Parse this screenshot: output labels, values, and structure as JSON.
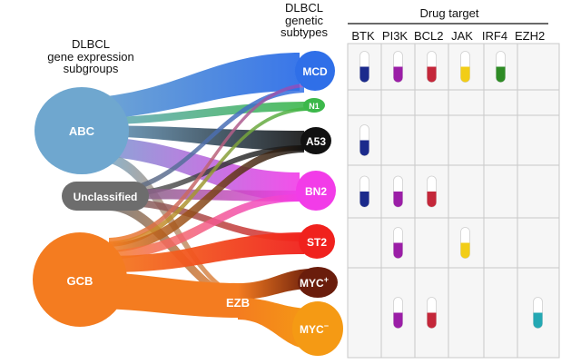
{
  "headers": {
    "left_line1": "DLBCL",
    "left_line2": "gene expression",
    "left_line3": "subgroups",
    "mid_line1": "DLBCL",
    "mid_line2": "genetic",
    "mid_line3": "subtypes",
    "drug_target": "Drug target"
  },
  "expression_subgroups": [
    {
      "id": "abc",
      "label": "ABC",
      "color": "#6fa7cf"
    },
    {
      "id": "unclassified",
      "label": "Unclassified",
      "color": "#6d6d6d"
    },
    {
      "id": "gcb",
      "label": "GCB",
      "color": "#f47c20"
    }
  ],
  "genetic_subtypes": [
    {
      "id": "mcd",
      "label": "MCD",
      "color": "#2f6fe8"
    },
    {
      "id": "n1",
      "label": "N1",
      "color": "#3cb84a"
    },
    {
      "id": "a53",
      "label": "A53",
      "color": "#111111"
    },
    {
      "id": "bn2",
      "label": "BN2",
      "color": "#f23ce8"
    },
    {
      "id": "st2",
      "label": "ST2",
      "color": "#f0211d"
    },
    {
      "id": "myc_plus",
      "label": "MYC",
      "sup": "+",
      "color": "#6a1d0c"
    },
    {
      "id": "myc_minus",
      "label": "MYC",
      "sup": "−",
      "color": "#f59a14"
    }
  ],
  "ezb_label": "EZB",
  "drug_targets": [
    {
      "name": "BTK",
      "color": "#1b2a8c"
    },
    {
      "name": "PI3K",
      "color": "#9b1ea7"
    },
    {
      "name": "BCL2",
      "color": "#c4273a"
    },
    {
      "name": "JAK",
      "color": "#f2cd17"
    },
    {
      "name": "IRF4",
      "color": "#2e8b25"
    },
    {
      "name": "EZH2",
      "color": "#24a8b3"
    }
  ],
  "matrix": {
    "MCD": [
      "BTK",
      "PI3K",
      "BCL2",
      "JAK",
      "IRF4"
    ],
    "N1": [],
    "A53": [
      "BTK"
    ],
    "BN2": [
      "BTK",
      "PI3K",
      "BCL2"
    ],
    "ST2": [
      "PI3K",
      "JAK"
    ],
    "EZB": [
      "PI3K",
      "BCL2",
      "EZH2"
    ]
  }
}
